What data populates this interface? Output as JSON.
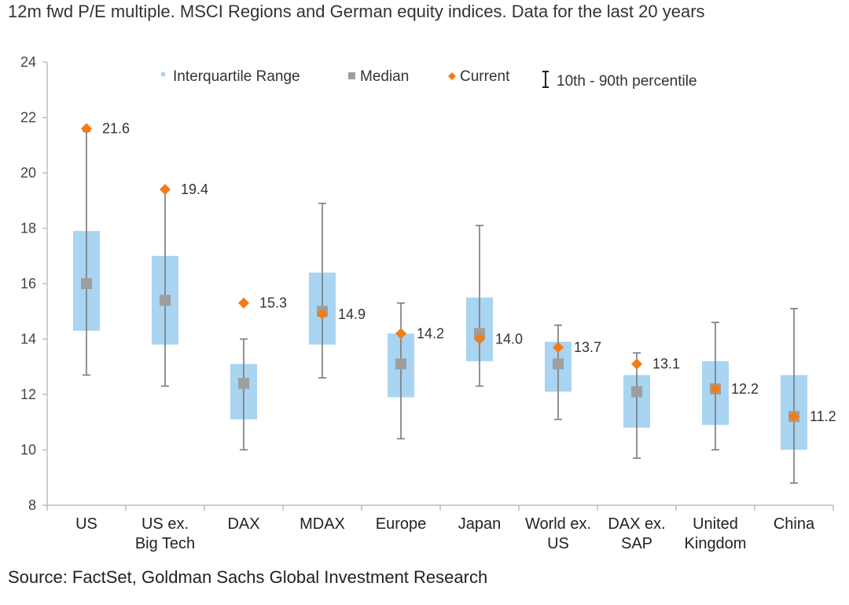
{
  "title": "12m fwd P/E multiple. MSCI Regions and German equity indices. Data for the last 20 years",
  "source": "Source: FactSet, Goldman Sachs Global Investment Research",
  "chart_data": {
    "type": "box",
    "title": "12m fwd P/E multiple. MSCI Regions and German equity indices. Data for the last 20 years",
    "ylim": [
      8,
      24
    ],
    "yticks": [
      8,
      10,
      12,
      14,
      16,
      18,
      20,
      22,
      24
    ],
    "grid": false,
    "legend_placement": "top",
    "legend": [
      {
        "key": "iqr",
        "label": "Interquartile Range",
        "color": "#a9d4f2"
      },
      {
        "key": "median",
        "label": "Median",
        "color": "#9e9e9e"
      },
      {
        "key": "current",
        "label": "Current",
        "color": "#f47b16"
      },
      {
        "key": "whisker",
        "label": "10th - 90th percentile",
        "color": "#222222"
      }
    ],
    "categories": [
      {
        "label": [
          "US"
        ],
        "p10": 12.7,
        "q1": 14.3,
        "median": 16.0,
        "q3": 17.9,
        "p90": 21.5,
        "current": 21.6,
        "current_label": "21.6"
      },
      {
        "label": [
          "US ex.",
          "Big Tech"
        ],
        "p10": 12.3,
        "q1": 13.8,
        "median": 15.4,
        "q3": 17.0,
        "p90": 19.4,
        "current": 19.4,
        "current_label": "19.4"
      },
      {
        "label": [
          "DAX"
        ],
        "p10": 10.0,
        "q1": 11.1,
        "median": 12.4,
        "q3": 13.1,
        "p90": 14.0,
        "current": 15.3,
        "current_label": "15.3"
      },
      {
        "label": [
          "MDAX"
        ],
        "p10": 12.6,
        "q1": 13.8,
        "median": 15.0,
        "q3": 16.4,
        "p90": 18.9,
        "current": 14.9,
        "current_label": "14.9"
      },
      {
        "label": [
          "Europe"
        ],
        "p10": 10.4,
        "q1": 11.9,
        "median": 13.1,
        "q3": 14.2,
        "p90": 15.3,
        "current": 14.2,
        "current_label": "14.2"
      },
      {
        "label": [
          "Japan"
        ],
        "p10": 12.3,
        "q1": 13.2,
        "median": 14.2,
        "q3": 15.5,
        "p90": 18.1,
        "current": 14.0,
        "current_label": "14.0"
      },
      {
        "label": [
          "World ex.",
          "US"
        ],
        "p10": 11.1,
        "q1": 12.1,
        "median": 13.1,
        "q3": 13.9,
        "p90": 14.5,
        "current": 13.7,
        "current_label": "13.7"
      },
      {
        "label": [
          "DAX ex.",
          "SAP"
        ],
        "p10": 9.7,
        "q1": 10.8,
        "median": 12.1,
        "q3": 12.7,
        "p90": 13.5,
        "current": 13.1,
        "current_label": "13.1"
      },
      {
        "label": [
          "United",
          "Kingdom"
        ],
        "p10": 10.0,
        "q1": 10.9,
        "median": 12.2,
        "q3": 13.2,
        "p90": 14.6,
        "current": 12.2,
        "current_label": "12.2"
      },
      {
        "label": [
          "China"
        ],
        "p10": 8.8,
        "q1": 10.0,
        "median": 11.2,
        "q3": 12.7,
        "p90": 15.1,
        "current": 11.2,
        "current_label": "11.2"
      }
    ]
  }
}
